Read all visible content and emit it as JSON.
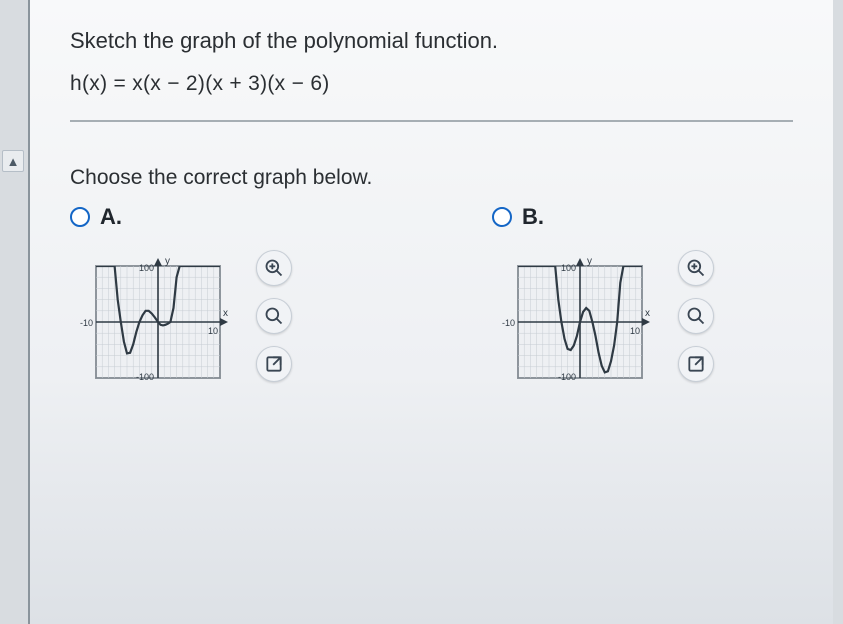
{
  "question": {
    "title": "Sketch the graph of the polynomial function.",
    "function_text": "h(x) = x(x − 2)(x + 3)(x − 6)",
    "choose_text": "Choose the correct graph below."
  },
  "options": [
    {
      "letter": "A.",
      "graph": {
        "type": "line",
        "xlim": [
          -10,
          10
        ],
        "ylim": [
          -100,
          100
        ],
        "xlabel": "x",
        "ylabel": "y",
        "xtick_major": 10,
        "ytick_major": 100,
        "xtick_minor": 1,
        "ytick_minor": 20,
        "axis_color": "#2f3a44",
        "grid_color": "#9fa8b0",
        "grid_minor_color": "#c6ccd3",
        "background_color": "#eef0f3",
        "curve_color": "#2f3a44",
        "curve_width": 2.2,
        "label_fontsize": 10,
        "tick_label_fontsize": 9,
        "x_tick_labels": {
          "neg": "-10",
          "pos": "10"
        },
        "y_tick_labels": {
          "neg": "-100",
          "pos": "100"
        },
        "roots": [
          -6,
          -3,
          0,
          2
        ],
        "points": [
          [
            -10,
            800
          ],
          [
            -8,
            400
          ],
          [
            -7,
            120
          ],
          [
            -6.5,
            40
          ],
          [
            -6,
            0
          ],
          [
            -5.5,
            -35
          ],
          [
            -5,
            -56
          ],
          [
            -4.5,
            -55
          ],
          [
            -4,
            -40
          ],
          [
            -3.5,
            -18
          ],
          [
            -3,
            0
          ],
          [
            -2.5,
            12
          ],
          [
            -2,
            20
          ],
          [
            -1.5,
            20
          ],
          [
            -1,
            15
          ],
          [
            -0.5,
            8
          ],
          [
            0,
            0
          ],
          [
            0.4,
            -5
          ],
          [
            0.8,
            -6
          ],
          [
            1.2,
            -5
          ],
          [
            1.6,
            -3
          ],
          [
            2,
            0
          ],
          [
            2.5,
            25
          ],
          [
            3,
            80
          ],
          [
            3.5,
            180
          ],
          [
            4,
            340
          ],
          [
            5,
            800
          ],
          [
            10,
            8000
          ]
        ]
      }
    },
    {
      "letter": "B.",
      "graph": {
        "type": "line",
        "xlim": [
          -10,
          10
        ],
        "ylim": [
          -100,
          100
        ],
        "xlabel": "x",
        "ylabel": "y",
        "xtick_major": 10,
        "ytick_major": 100,
        "xtick_minor": 1,
        "ytick_minor": 20,
        "axis_color": "#2f3a44",
        "grid_color": "#9fa8b0",
        "grid_minor_color": "#c6ccd3",
        "background_color": "#eef0f3",
        "curve_color": "#2f3a44",
        "curve_width": 2.2,
        "label_fontsize": 10,
        "tick_label_fontsize": 9,
        "x_tick_labels": {
          "neg": "-10",
          "pos": "10"
        },
        "y_tick_labels": {
          "neg": "-100",
          "pos": "100"
        },
        "roots": [
          -3,
          0,
          2,
          6
        ],
        "points": [
          [
            -10,
            8000
          ],
          [
            -6,
            800
          ],
          [
            -5,
            300
          ],
          [
            -4,
            110
          ],
          [
            -3.5,
            40
          ],
          [
            -3,
            0
          ],
          [
            -2.5,
            -30
          ],
          [
            -2,
            -48
          ],
          [
            -1.5,
            -50
          ],
          [
            -1,
            -42
          ],
          [
            -0.5,
            -25
          ],
          [
            0,
            0
          ],
          [
            0.5,
            18
          ],
          [
            1,
            25
          ],
          [
            1.5,
            20
          ],
          [
            2,
            0
          ],
          [
            2.5,
            -25
          ],
          [
            3,
            -55
          ],
          [
            3.5,
            -78
          ],
          [
            4,
            -90
          ],
          [
            4.5,
            -88
          ],
          [
            5,
            -70
          ],
          [
            5.5,
            -42
          ],
          [
            6,
            0
          ],
          [
            6.5,
            70
          ],
          [
            7,
            180
          ],
          [
            8,
            550
          ],
          [
            10,
            2000
          ]
        ]
      }
    }
  ],
  "icons": {
    "zoom_in": "zoom-in",
    "zoom": "zoom",
    "popout": "popout"
  },
  "colors": {
    "radio_border": "#1466c6",
    "text": "#2b2f33",
    "icon_stroke": "#3a4653"
  }
}
